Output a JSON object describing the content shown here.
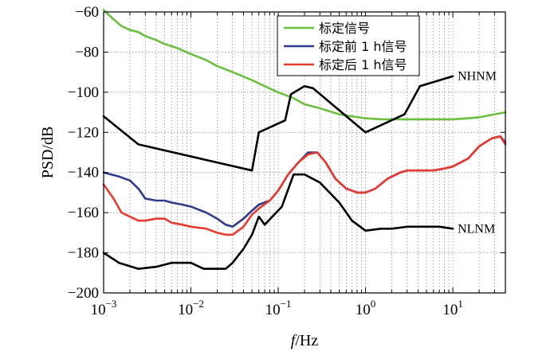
{
  "chart_data": {
    "type": "line",
    "xscale": "log",
    "xlim": [
      0.001,
      40
    ],
    "ylim": [
      -200,
      -60
    ],
    "grid": true,
    "legend_position": "top-right",
    "xlabel_italic": "f",
    "xlabel_rest": "/Hz",
    "ylabel": "PSD/dB",
    "x_ticks": [
      {
        "v": 0.001,
        "base": "10",
        "exp": "−3"
      },
      {
        "v": 0.01,
        "base": "10",
        "exp": "−2"
      },
      {
        "v": 0.1,
        "base": "10",
        "exp": "−1"
      },
      {
        "v": 1,
        "base": "10",
        "exp": "0"
      },
      {
        "v": 10,
        "base": "10",
        "exp": "1"
      }
    ],
    "y_ticks": [
      {
        "v": -60,
        "label": "−60"
      },
      {
        "v": -80,
        "label": "−80"
      },
      {
        "v": -100,
        "label": "−100"
      },
      {
        "v": -120,
        "label": "−120"
      },
      {
        "v": -140,
        "label": "−140"
      },
      {
        "v": -160,
        "label": "−160"
      },
      {
        "v": -180,
        "label": "−180"
      },
      {
        "v": -200,
        "label": "−200"
      }
    ],
    "series": [
      {
        "name": "标定信号",
        "color": "#6abf3f",
        "legend": true,
        "x": [
          0.001,
          0.00125,
          0.0016,
          0.002,
          0.0025,
          0.003,
          0.004,
          0.005,
          0.007,
          0.01,
          0.015,
          0.02,
          0.03,
          0.05,
          0.07,
          0.1,
          0.15,
          0.2,
          0.3,
          0.5,
          0.7,
          1,
          1.5,
          2,
          3,
          5,
          7,
          10,
          15,
          20,
          30,
          40
        ],
        "y": [
          -59,
          -63,
          -67,
          -69,
          -70,
          -72,
          -74,
          -76,
          -78,
          -81,
          -84,
          -87,
          -90,
          -94,
          -97,
          -100,
          -103,
          -106,
          -108,
          -111,
          -112,
          -113,
          -113.5,
          -113.5,
          -113.5,
          -113.5,
          -113.5,
          -113.5,
          -113,
          -112.5,
          -111,
          -110
        ]
      },
      {
        "name": "标定前 1 h信号",
        "color": "#2e3a8c",
        "legend": true,
        "x": [
          0.001,
          0.0015,
          0.002,
          0.0025,
          0.003,
          0.004,
          0.005,
          0.006,
          0.008,
          0.01,
          0.015,
          0.02,
          0.025,
          0.03,
          0.04,
          0.05,
          0.06,
          0.08,
          0.1,
          0.13,
          0.17,
          0.22,
          0.28,
          0.35,
          0.45,
          0.6,
          0.8,
          1,
          1.3,
          1.8,
          2.5,
          3,
          4,
          6,
          8,
          10,
          15,
          20,
          28,
          35,
          40
        ],
        "y": [
          -140,
          -142,
          -144,
          -148,
          -153,
          -154,
          -154,
          -155,
          -156,
          -157,
          -160,
          -163,
          -166,
          -167,
          -163,
          -159,
          -156,
          -154,
          -149,
          -141,
          -135,
          -130,
          -130,
          -135,
          -143,
          -148,
          -150,
          -150,
          -148,
          -143,
          -140,
          -139,
          -139,
          -139,
          -138,
          -137,
          -133,
          -127,
          -123,
          -122,
          -125
        ]
      },
      {
        "name": "标定后 1 h信号",
        "color": "#e63b2e",
        "legend": true,
        "x": [
          0.001,
          0.0013,
          0.0016,
          0.002,
          0.0025,
          0.003,
          0.004,
          0.005,
          0.006,
          0.008,
          0.01,
          0.015,
          0.02,
          0.025,
          0.03,
          0.04,
          0.05,
          0.06,
          0.08,
          0.1,
          0.13,
          0.17,
          0.22,
          0.28,
          0.35,
          0.45,
          0.6,
          0.8,
          1,
          1.3,
          1.8,
          2.5,
          3,
          4,
          6,
          8,
          10,
          15,
          20,
          28,
          35,
          40
        ],
        "y": [
          -146,
          -153,
          -160,
          -162,
          -164,
          -164,
          -163,
          -163,
          -165,
          -166,
          -167,
          -168,
          -170,
          -171,
          -171,
          -167,
          -161,
          -158,
          -154,
          -149,
          -141,
          -135,
          -131,
          -130,
          -135,
          -143,
          -148,
          -150,
          -150,
          -148,
          -143,
          -140,
          -139,
          -139,
          -139,
          -138,
          -137,
          -133,
          -127,
          -123,
          -122,
          -126
        ]
      },
      {
        "name": "NHNM",
        "color": "#000000",
        "legend": false,
        "x": [
          0.001,
          0.0025,
          0.05,
          0.06,
          0.12,
          0.14,
          0.2,
          0.25,
          1,
          2.8,
          4.2,
          10
        ],
        "y": [
          -112,
          -126,
          -139,
          -120,
          -114,
          -101,
          -97,
          -98,
          -120,
          -111,
          -97,
          -92
        ]
      },
      {
        "name": "NLNM",
        "color": "#000000",
        "legend": false,
        "x": [
          0.001,
          0.0015,
          0.0025,
          0.004,
          0.006,
          0.01,
          0.014,
          0.02,
          0.025,
          0.03,
          0.04,
          0.05,
          0.06,
          0.07,
          0.09,
          0.11,
          0.15,
          0.2,
          0.3,
          0.5,
          0.7,
          1,
          1.5,
          2,
          3,
          5,
          7,
          10
        ],
        "y": [
          -180,
          -185,
          -188,
          -187,
          -185,
          -185,
          -188,
          -188,
          -188,
          -185,
          -178,
          -171,
          -162,
          -166,
          -161,
          -157,
          -141,
          -141,
          -145,
          -155,
          -164,
          -169,
          -168,
          -168,
          -167,
          -167,
          -167,
          -168
        ]
      }
    ],
    "annotations": [
      {
        "text": "NHNM",
        "series": "NHNM"
      },
      {
        "text": "NLNM",
        "series": "NLNM"
      }
    ]
  }
}
